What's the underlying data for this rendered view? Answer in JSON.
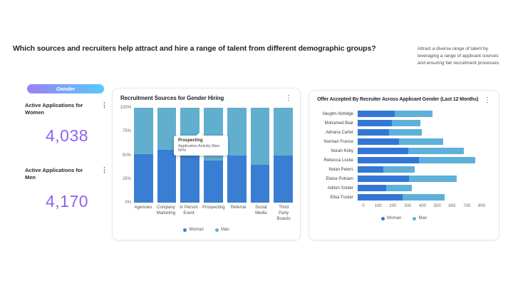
{
  "header": {
    "question": "Which sources and recruiters help attract and hire a range of talent from different demographic groups?",
    "note": "Attract a diverse range of talent by leveraging a range of applicant sources and ensuring fair recruitment processes."
  },
  "icons": {
    "kebab": "⋮"
  },
  "colors": {
    "kpi_value": "#8d63f1",
    "pill_gradient_start": "#9d80f6",
    "pill_gradient_end": "#55ccfa"
  },
  "sidebar": {
    "badge": "Gender",
    "kpis": [
      {
        "label": "Active Applications for Women",
        "value": "4,038"
      },
      {
        "label": "Active Applications for Men",
        "value": "4,170"
      }
    ]
  },
  "chart_data": [
    {
      "type": "bar",
      "stacked": true,
      "title": "Recruitment Sources for Gender Hiring",
      "categories": [
        "Agencies",
        "Company Marketing",
        "In Person Event",
        "Prospecting",
        "Referral",
        "Social Media",
        "Third Party Boards"
      ],
      "series": [
        {
          "name": "Woman",
          "color": "#3a7ed3",
          "values": [
            51,
            56,
            63,
            44,
            50,
            40,
            50
          ]
        },
        {
          "name": "Man",
          "color": "#62aecf",
          "values": [
            49,
            44,
            37,
            56,
            50,
            60,
            50
          ]
        }
      ],
      "ylim": [
        0,
        100
      ],
      "y_ticks": [
        "100%",
        "75%",
        "50%",
        "25%",
        "0%"
      ],
      "legend_position": "bottom",
      "tooltip": {
        "title": "Prospecting",
        "line": "Application Activity Man: 56%"
      }
    },
    {
      "type": "bar",
      "orientation": "horizontal",
      "stacked": true,
      "title": "Offer Accepted By Recruiter Across Applicant Gender (Last 12 Months)",
      "categories": [
        "Vaughn Aldridge",
        "Mohamed Blair",
        "Adriana Carter",
        "Norman France",
        "Norah Kirby",
        "Rebecca Locke",
        "Nolan Peters",
        "Eloise Putnam",
        "Adrien Snider",
        "Elisa Tucker"
      ],
      "series": [
        {
          "name": "Woman",
          "color": "#3377d6",
          "values": [
            225,
            205,
            190,
            250,
            305,
            370,
            155,
            310,
            170,
            270
          ]
        },
        {
          "name": "Man",
          "color": "#5db0d9",
          "values": [
            225,
            175,
            195,
            265,
            335,
            340,
            190,
            290,
            155,
            255
          ]
        }
      ],
      "xlim": [
        0,
        800
      ],
      "x_ticks": [
        0,
        100,
        200,
        300,
        400,
        500,
        600,
        700,
        800
      ],
      "legend_position": "bottom"
    }
  ]
}
